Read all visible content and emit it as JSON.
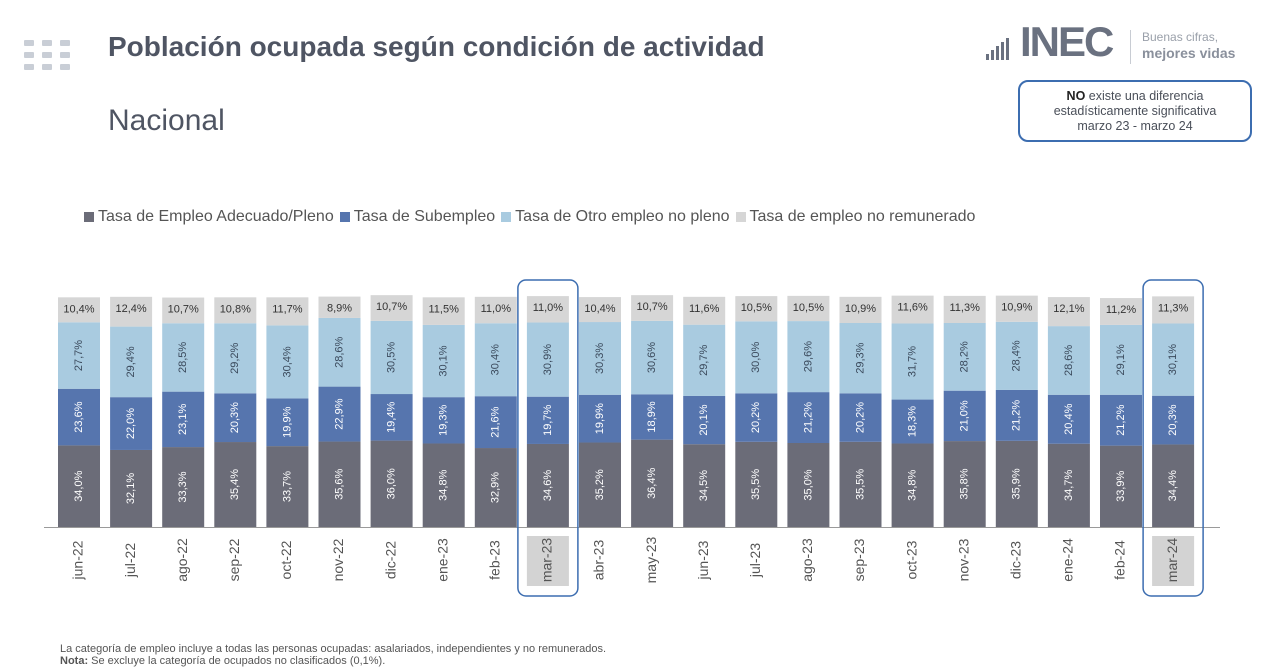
{
  "header": {
    "title": "Población ocupada según condición de actividad",
    "subtitle": "Nacional"
  },
  "logo": {
    "text": "INEC",
    "tagline_top": "Buenas cifras,",
    "tagline_bottom": "mejores vidas"
  },
  "note_box": {
    "bold": "NO",
    "line1": " existe una diferencia",
    "line2": "estadísticamente significativa",
    "line3": "marzo 23 - marzo 24"
  },
  "colors": {
    "adecuado": "#6b6c78",
    "subempleo": "#5675ae",
    "otro": "#a9cbe0",
    "noremunerado": "#d6d6d6",
    "highlight": "#3c6db0"
  },
  "chart_data": {
    "type": "bar",
    "stacked": true,
    "categories": [
      "jun-22",
      "jul-22",
      "ago-22",
      "sep-22",
      "oct-22",
      "nov-22",
      "dic-22",
      "ene-23",
      "feb-23",
      "mar-23",
      "abr-23",
      "may-23",
      "jun-23",
      "jul-23",
      "ago-23",
      "sep-23",
      "oct-23",
      "nov-23",
      "dic-23",
      "ene-24",
      "feb-24",
      "mar-24"
    ],
    "series": [
      {
        "name": "Tasa de Empleo Adecuado/Pleno",
        "values": [
          34.0,
          32.1,
          33.3,
          35.4,
          33.7,
          35.6,
          36.0,
          34.8,
          32.9,
          34.6,
          35.2,
          36.4,
          34.5,
          35.5,
          35.0,
          35.5,
          34.8,
          35.8,
          35.9,
          34.7,
          33.9,
          34.4
        ]
      },
      {
        "name": "Tasa de Subempleo",
        "values": [
          23.6,
          22.0,
          23.1,
          20.3,
          19.9,
          22.9,
          19.4,
          19.3,
          21.6,
          19.7,
          19.9,
          18.9,
          20.1,
          20.2,
          21.2,
          20.2,
          18.3,
          21.0,
          21.2,
          20.4,
          21.2,
          20.3
        ]
      },
      {
        "name": "Tasa de Otro empleo no pleno",
        "values": [
          27.7,
          29.4,
          28.5,
          29.2,
          30.4,
          28.6,
          30.5,
          30.1,
          30.4,
          30.9,
          30.3,
          30.6,
          29.7,
          30.0,
          29.6,
          29.3,
          31.7,
          28.2,
          28.4,
          28.6,
          29.1,
          30.1
        ]
      },
      {
        "name": "Tasa de empleo no remunerado",
        "values": [
          10.4,
          12.4,
          10.7,
          10.8,
          11.7,
          8.9,
          10.7,
          11.5,
          11.0,
          11.0,
          10.4,
          10.7,
          11.6,
          10.5,
          10.5,
          10.9,
          11.6,
          11.3,
          10.9,
          12.1,
          11.2,
          11.3
        ]
      }
    ],
    "highlighted": [
      "mar-23",
      "mar-24"
    ],
    "legend_position": "top"
  },
  "footer": {
    "line1": "La categoría de empleo incluye a todas las personas ocupadas: asalariados, independientes y no remunerados.",
    "nota_label": "Nota:",
    "nota_text": " Se excluye la categoría de ocupados no clasificados (0,1%)."
  }
}
